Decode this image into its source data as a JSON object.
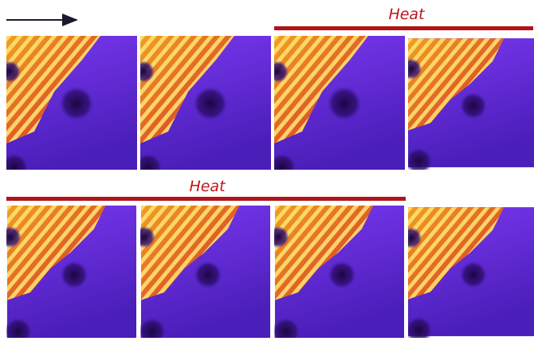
{
  "annotations": [
    {
      "label": "Heat"
    },
    {
      "label": "Heat"
    }
  ]
}
